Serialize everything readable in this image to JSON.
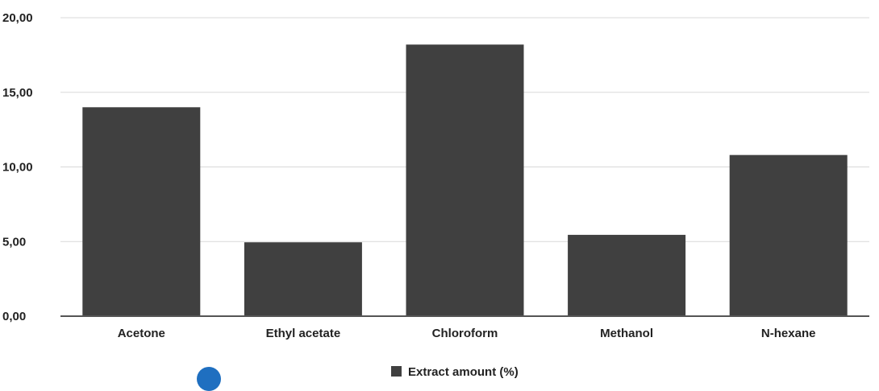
{
  "chart_data": {
    "type": "bar",
    "categories": [
      "Acetone",
      "Ethyl acetate",
      "Chloroform",
      "Methanol",
      "N-hexane"
    ],
    "series": [
      {
        "name": "Extract amount (%)",
        "values": [
          14.0,
          4.95,
          18.2,
          5.45,
          10.8
        ]
      }
    ],
    "y_ticks": [
      "0,00",
      "5,00",
      "10,00",
      "15,00",
      "20,00"
    ],
    "ylim": [
      0,
      20
    ],
    "grid": true,
    "legend_position": "bottom",
    "bar_color": "#404040",
    "grid_color": "#d9d9d9",
    "axis_color": "#555555"
  }
}
